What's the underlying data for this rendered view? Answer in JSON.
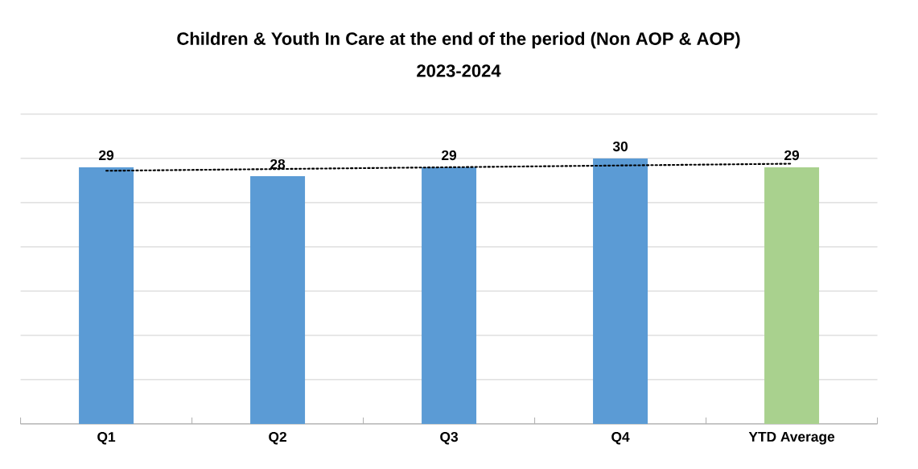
{
  "chart_data": {
    "type": "bar",
    "title": "Children & Youth In Care at the end of the period (Non AOP & AOP)",
    "subtitle": "2023-2024",
    "categories": [
      "Q1",
      "Q2",
      "Q3",
      "Q4",
      "YTD Average"
    ],
    "series": [
      {
        "values": [
          29,
          28,
          29,
          30,
          29
        ],
        "colors": [
          "#5b9bd5",
          "#5b9bd5",
          "#5b9bd5",
          "#5b9bd5",
          "#a9d18e"
        ],
        "value_labels": [
          "29",
          "28",
          "29",
          "30",
          "29"
        ]
      },
      {
        "type": "line",
        "values": [
          28.6,
          28.8,
          29.0,
          29.2,
          29.4
        ],
        "color": "#000000",
        "line_style": "dotted",
        "marker": "none"
      }
    ],
    "ylim": [
      0,
      35
    ],
    "yticks": [
      {
        "value": 0,
        "label": null
      },
      {
        "value": 5,
        "label": null
      },
      {
        "value": 10,
        "label": null
      },
      {
        "value": 15,
        "label": null
      },
      {
        "value": 20,
        "label": null
      },
      {
        "value": 25,
        "label": null
      },
      {
        "value": 30,
        "label": null
      },
      {
        "value": 35,
        "label": null
      }
    ],
    "grid": "y",
    "tick_labels": "x"
  }
}
